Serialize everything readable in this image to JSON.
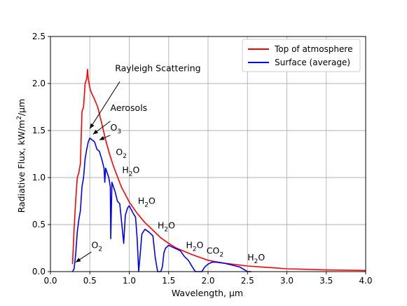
{
  "chart_data": {
    "type": "line",
    "title": "",
    "xlabel": "Wavelength, µm",
    "ylabel_parts": [
      "Radiative Flux, kW/m",
      "2",
      "/µm"
    ],
    "xlim": [
      0.0,
      4.0
    ],
    "ylim": [
      0.0,
      2.5
    ],
    "xticks": [
      0.0,
      0.5,
      1.0,
      1.5,
      2.0,
      2.5,
      3.0,
      3.5,
      4.0
    ],
    "xtick_labels": [
      "0.0",
      "0.5",
      "1.0",
      "1.5",
      "2.0",
      "2.5",
      "3.0",
      "3.5",
      "4.0"
    ],
    "yticks": [
      0.0,
      0.5,
      1.0,
      1.5,
      2.0,
      2.5
    ],
    "ytick_labels": [
      "0.0",
      "0.5",
      "1.0",
      "1.5",
      "2.0",
      "2.5"
    ],
    "grid": true,
    "legend_position": "top-right",
    "series": [
      {
        "name": "Top of atmosphere",
        "color": "#ff0000",
        "x": [
          0.28,
          0.3,
          0.32,
          0.34,
          0.36,
          0.38,
          0.4,
          0.42,
          0.44,
          0.46,
          0.47,
          0.48,
          0.5,
          0.52,
          0.55,
          0.6,
          0.65,
          0.7,
          0.75,
          0.8,
          0.9,
          1.0,
          1.1,
          1.2,
          1.3,
          1.4,
          1.5,
          1.6,
          1.8,
          2.0,
          2.2,
          2.5,
          3.0,
          3.5,
          4.0
        ],
        "y": [
          0.08,
          0.45,
          0.75,
          1.0,
          1.05,
          1.15,
          1.7,
          1.75,
          2.0,
          2.05,
          2.15,
          2.05,
          1.95,
          1.9,
          1.85,
          1.75,
          1.58,
          1.4,
          1.25,
          1.12,
          0.9,
          0.74,
          0.62,
          0.52,
          0.44,
          0.36,
          0.3,
          0.25,
          0.18,
          0.12,
          0.09,
          0.06,
          0.03,
          0.018,
          0.012
        ]
      },
      {
        "name": "Surface (average)",
        "color": "#0000ff",
        "x": [
          0.28,
          0.3,
          0.32,
          0.34,
          0.36,
          0.38,
          0.4,
          0.42,
          0.44,
          0.46,
          0.48,
          0.5,
          0.53,
          0.56,
          0.59,
          0.62,
          0.65,
          0.68,
          0.69,
          0.7,
          0.72,
          0.74,
          0.76,
          0.765,
          0.78,
          0.8,
          0.82,
          0.85,
          0.88,
          0.9,
          0.93,
          0.95,
          0.98,
          1.0,
          1.05,
          1.08,
          1.1,
          1.12,
          1.14,
          1.16,
          1.2,
          1.25,
          1.3,
          1.33,
          1.36,
          1.4,
          1.42,
          1.44,
          1.46,
          1.5,
          1.55,
          1.6,
          1.65,
          1.7,
          1.75,
          1.8,
          1.84,
          1.88,
          1.92,
          1.96,
          2.0,
          2.05,
          2.1,
          2.2,
          2.3,
          2.4,
          2.46,
          2.5,
          2.55
        ],
        "y": [
          0.0,
          0.03,
          0.18,
          0.42,
          0.55,
          0.65,
          0.9,
          1.0,
          1.2,
          1.3,
          1.38,
          1.42,
          1.4,
          1.38,
          1.3,
          1.28,
          1.2,
          1.1,
          0.95,
          1.1,
          1.05,
          1.0,
          0.9,
          0.35,
          0.95,
          0.9,
          0.85,
          0.75,
          0.72,
          0.55,
          0.3,
          0.6,
          0.68,
          0.7,
          0.62,
          0.58,
          0.35,
          0.0,
          0.2,
          0.4,
          0.45,
          0.42,
          0.38,
          0.15,
          0.0,
          0.0,
          0.05,
          0.2,
          0.25,
          0.28,
          0.26,
          0.24,
          0.22,
          0.16,
          0.12,
          0.05,
          0.0,
          0.0,
          0.0,
          0.05,
          0.08,
          0.1,
          0.1,
          0.09,
          0.07,
          0.05,
          0.02,
          0.0,
          0.0
        ]
      }
    ],
    "annotations": [
      {
        "id": "rayleigh",
        "text": "Rayleigh Scattering",
        "sub": "",
        "after": "",
        "text_x": 0.82,
        "text_y": 2.13,
        "arrow_from": [
          0.88,
          2.02
        ],
        "arrow_to": [
          0.5,
          1.52
        ]
      },
      {
        "id": "aerosols",
        "text": "Aerosols",
        "sub": "",
        "after": "",
        "text_x": 0.76,
        "text_y": 1.71,
        "arrow_from": [
          0.76,
          1.6
        ],
        "arrow_to": [
          0.54,
          1.46
        ]
      },
      {
        "id": "o3",
        "text": "O",
        "sub": "3",
        "after": "",
        "text_x": 0.76,
        "text_y": 1.5,
        "arrow_from": [
          0.76,
          1.45
        ],
        "arrow_to": [
          0.62,
          1.4
        ]
      },
      {
        "id": "o2-upper",
        "text": "O",
        "sub": "2",
        "after": "",
        "text_x": 0.83,
        "text_y": 1.24,
        "arrow_from": null,
        "arrow_to": null
      },
      {
        "id": "h2o-1",
        "text": "H",
        "sub": "2",
        "after": "O",
        "text_x": 0.91,
        "text_y": 1.05,
        "arrow_from": null,
        "arrow_to": null
      },
      {
        "id": "h2o-2",
        "text": "H",
        "sub": "2",
        "after": "O",
        "text_x": 1.11,
        "text_y": 0.72,
        "arrow_from": null,
        "arrow_to": null
      },
      {
        "id": "h2o-3",
        "text": "H",
        "sub": "2",
        "after": "O",
        "text_x": 1.36,
        "text_y": 0.46,
        "arrow_from": null,
        "arrow_to": null
      },
      {
        "id": "o2-lower",
        "text": "O",
        "sub": "2",
        "after": "",
        "text_x": 0.52,
        "text_y": 0.25,
        "arrow_from": [
          0.52,
          0.21
        ],
        "arrow_to": [
          0.32,
          0.1
        ]
      },
      {
        "id": "h2o-4",
        "text": "H",
        "sub": "2",
        "after": "O",
        "text_x": 1.72,
        "text_y": 0.25,
        "arrow_from": null,
        "arrow_to": null
      },
      {
        "id": "co2",
        "text": "CO",
        "sub": "2",
        "after": "",
        "text_x": 1.98,
        "text_y": 0.19,
        "arrow_from": null,
        "arrow_to": null
      },
      {
        "id": "h2o-5",
        "text": "H",
        "sub": "2",
        "after": "O",
        "text_x": 2.5,
        "text_y": 0.12,
        "arrow_from": null,
        "arrow_to": null
      }
    ]
  }
}
